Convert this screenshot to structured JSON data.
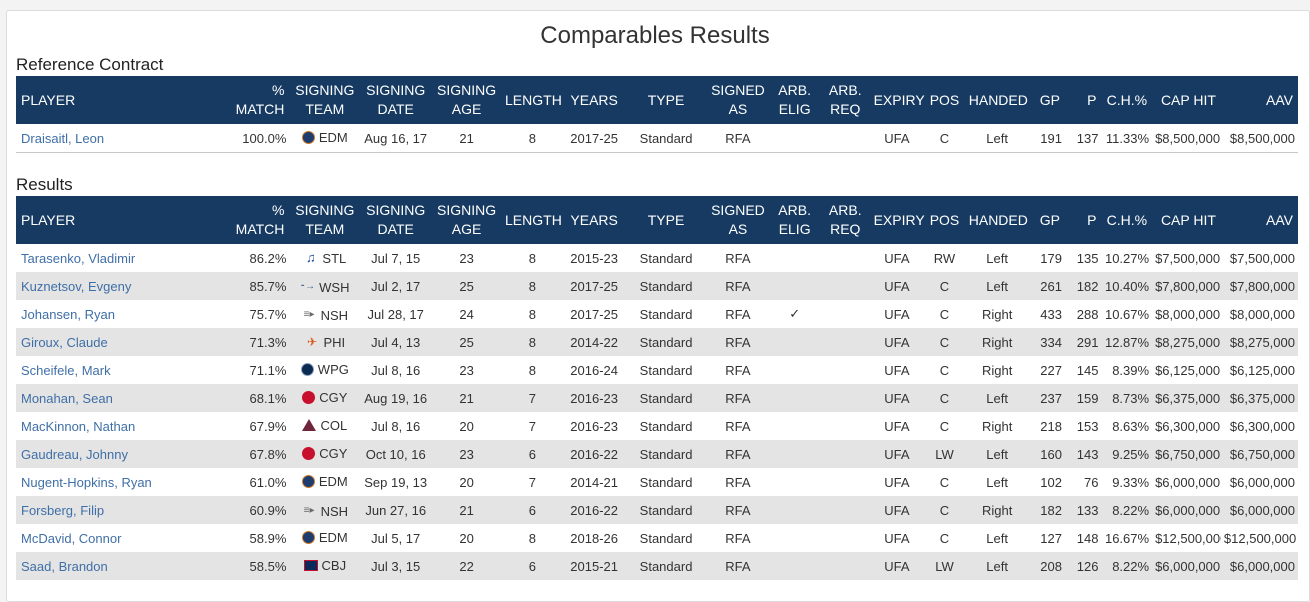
{
  "page_title": "Comparables Results",
  "reference_section_title": "Reference Contract",
  "results_section_title": "Results",
  "columns": [
    [
      "PLAYER"
    ],
    [
      "%",
      "MATCH"
    ],
    [
      "SIGNING",
      "TEAM"
    ],
    [
      "SIGNING",
      "DATE"
    ],
    [
      "SIGNING",
      "AGE"
    ],
    [
      "LENGTH"
    ],
    [
      "YEARS"
    ],
    [
      "TYPE"
    ],
    [
      "SIGNED",
      "AS"
    ],
    [
      "ARB.",
      "ELIG"
    ],
    [
      "ARB.",
      "REQ"
    ],
    [
      "EXPIRY"
    ],
    [
      "POS"
    ],
    [
      "HANDED"
    ],
    [
      "GP"
    ],
    [
      "P"
    ],
    [
      "C.H.%"
    ],
    [
      "CAP HIT"
    ],
    [
      "AAV"
    ]
  ],
  "reference": [
    {
      "player": "Draisaitl, Leon",
      "match": "100.0%",
      "logo": "oilers-logo",
      "team": "EDM",
      "date": "Aug 16, 17",
      "age": "21",
      "length": "8",
      "years": "2017-25",
      "type": "Standard",
      "signed_as": "RFA",
      "arb_elig": "",
      "arb_req": "",
      "expiry": "UFA",
      "pos": "C",
      "handed": "Left",
      "gp": "191",
      "p": "137",
      "ch_pct": "11.33%",
      "cap_hit": "$8,500,000",
      "aav": "$8,500,000"
    }
  ],
  "results": [
    {
      "player": "Tarasenko, Vladimir",
      "match": "86.2%",
      "logo": "blues-logo",
      "team": "STL",
      "date": "Jul 7, 15",
      "age": "23",
      "length": "8",
      "years": "2015-23",
      "type": "Standard",
      "signed_as": "RFA",
      "arb_elig": "",
      "arb_req": "",
      "expiry": "UFA",
      "pos": "RW",
      "handed": "Left",
      "gp": "179",
      "p": "135",
      "ch_pct": "10.27%",
      "cap_hit": "$7,500,000",
      "aav": "$7,500,000"
    },
    {
      "player": "Kuznetsov, Evgeny",
      "match": "85.7%",
      "logo": "capitals-logo",
      "team": "WSH",
      "date": "Jul 2, 17",
      "age": "25",
      "length": "8",
      "years": "2017-25",
      "type": "Standard",
      "signed_as": "RFA",
      "arb_elig": "",
      "arb_req": "",
      "expiry": "UFA",
      "pos": "C",
      "handed": "Left",
      "gp": "261",
      "p": "182",
      "ch_pct": "10.40%",
      "cap_hit": "$7,800,000",
      "aav": "$7,800,000"
    },
    {
      "player": "Johansen, Ryan",
      "match": "75.7%",
      "logo": "predators-logo",
      "team": "NSH",
      "date": "Jul 28, 17",
      "age": "24",
      "length": "8",
      "years": "2017-25",
      "type": "Standard",
      "signed_as": "RFA",
      "arb_elig": "✓",
      "arb_req": "",
      "expiry": "UFA",
      "pos": "C",
      "handed": "Right",
      "gp": "433",
      "p": "288",
      "ch_pct": "10.67%",
      "cap_hit": "$8,000,000",
      "aav": "$8,000,000"
    },
    {
      "player": "Giroux, Claude",
      "match": "71.3%",
      "logo": "flyers-logo",
      "team": "PHI",
      "date": "Jul 4, 13",
      "age": "25",
      "length": "8",
      "years": "2014-22",
      "type": "Standard",
      "signed_as": "RFA",
      "arb_elig": "",
      "arb_req": "",
      "expiry": "UFA",
      "pos": "C",
      "handed": "Right",
      "gp": "334",
      "p": "291",
      "ch_pct": "12.87%",
      "cap_hit": "$8,275,000",
      "aav": "$8,275,000"
    },
    {
      "player": "Scheifele, Mark",
      "match": "71.1%",
      "logo": "jets-logo",
      "team": "WPG",
      "date": "Jul 8, 16",
      "age": "23",
      "length": "8",
      "years": "2016-24",
      "type": "Standard",
      "signed_as": "RFA",
      "arb_elig": "",
      "arb_req": "",
      "expiry": "UFA",
      "pos": "C",
      "handed": "Right",
      "gp": "227",
      "p": "145",
      "ch_pct": "8.39%",
      "cap_hit": "$6,125,000",
      "aav": "$6,125,000"
    },
    {
      "player": "Monahan, Sean",
      "match": "68.1%",
      "logo": "flames-logo",
      "team": "CGY",
      "date": "Aug 19, 16",
      "age": "21",
      "length": "7",
      "years": "2016-23",
      "type": "Standard",
      "signed_as": "RFA",
      "arb_elig": "",
      "arb_req": "",
      "expiry": "UFA",
      "pos": "C",
      "handed": "Left",
      "gp": "237",
      "p": "159",
      "ch_pct": "8.73%",
      "cap_hit": "$6,375,000",
      "aav": "$6,375,000"
    },
    {
      "player": "MacKinnon, Nathan",
      "match": "67.9%",
      "logo": "avalanche-logo",
      "team": "COL",
      "date": "Jul 8, 16",
      "age": "20",
      "length": "7",
      "years": "2016-23",
      "type": "Standard",
      "signed_as": "RFA",
      "arb_elig": "",
      "arb_req": "",
      "expiry": "UFA",
      "pos": "C",
      "handed": "Right",
      "gp": "218",
      "p": "153",
      "ch_pct": "8.63%",
      "cap_hit": "$6,300,000",
      "aav": "$6,300,000"
    },
    {
      "player": "Gaudreau, Johnny",
      "match": "67.8%",
      "logo": "flames-logo",
      "team": "CGY",
      "date": "Oct 10, 16",
      "age": "23",
      "length": "6",
      "years": "2016-22",
      "type": "Standard",
      "signed_as": "RFA",
      "arb_elig": "",
      "arb_req": "",
      "expiry": "UFA",
      "pos": "LW",
      "handed": "Left",
      "gp": "160",
      "p": "143",
      "ch_pct": "9.25%",
      "cap_hit": "$6,750,000",
      "aav": "$6,750,000"
    },
    {
      "player": "Nugent-Hopkins, Ryan",
      "match": "61.0%",
      "logo": "oilers-logo",
      "team": "EDM",
      "date": "Sep 19, 13",
      "age": "20",
      "length": "7",
      "years": "2014-21",
      "type": "Standard",
      "signed_as": "RFA",
      "arb_elig": "",
      "arb_req": "",
      "expiry": "UFA",
      "pos": "C",
      "handed": "Left",
      "gp": "102",
      "p": "76",
      "ch_pct": "9.33%",
      "cap_hit": "$6,000,000",
      "aav": "$6,000,000"
    },
    {
      "player": "Forsberg, Filip",
      "match": "60.9%",
      "logo": "predators-logo",
      "team": "NSH",
      "date": "Jun 27, 16",
      "age": "21",
      "length": "6",
      "years": "2016-22",
      "type": "Standard",
      "signed_as": "RFA",
      "arb_elig": "",
      "arb_req": "",
      "expiry": "UFA",
      "pos": "C",
      "handed": "Right",
      "gp": "182",
      "p": "133",
      "ch_pct": "8.22%",
      "cap_hit": "$6,000,000",
      "aav": "$6,000,000"
    },
    {
      "player": "McDavid, Connor",
      "match": "58.9%",
      "logo": "oilers-logo",
      "team": "EDM",
      "date": "Jul 5, 17",
      "age": "20",
      "length": "8",
      "years": "2018-26",
      "type": "Standard",
      "signed_as": "RFA",
      "arb_elig": "",
      "arb_req": "",
      "expiry": "UFA",
      "pos": "C",
      "handed": "Left",
      "gp": "127",
      "p": "148",
      "ch_pct": "16.67%",
      "cap_hit": "$12,500,000",
      "aav": "$12,500,000"
    },
    {
      "player": "Saad, Brandon",
      "match": "58.5%",
      "logo": "blue-jackets-logo",
      "team": "CBJ",
      "date": "Jul 3, 15",
      "age": "22",
      "length": "6",
      "years": "2015-21",
      "type": "Standard",
      "signed_as": "RFA",
      "arb_elig": "",
      "arb_req": "",
      "expiry": "UFA",
      "pos": "LW",
      "handed": "Left",
      "gp": "208",
      "p": "126",
      "ch_pct": "8.22%",
      "cap_hit": "$6,000,000",
      "aav": "$6,000,000"
    }
  ]
}
